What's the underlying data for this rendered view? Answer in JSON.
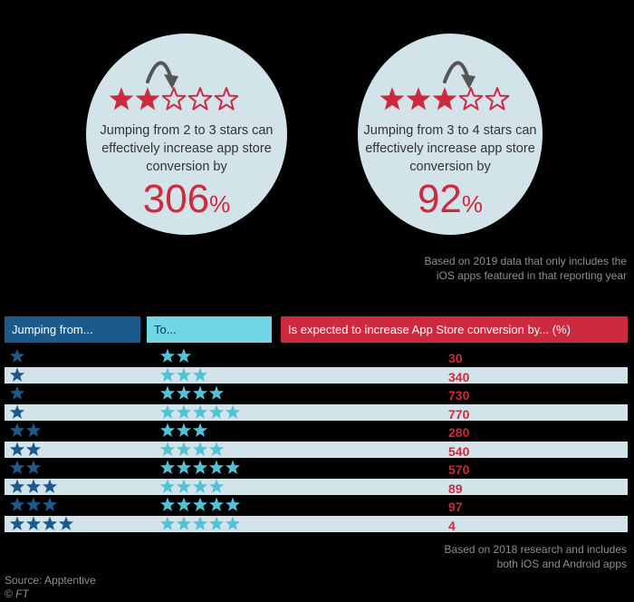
{
  "colors": {
    "background": "#000000",
    "circle": "#d2e4ea",
    "red": "#cc2a3e",
    "from_header": "#1c5a8c",
    "to_header": "#6fd6e6",
    "increase_header": "#cc2a3e",
    "from_star": "#1c5a8c",
    "to_star": "#52c2d8"
  },
  "icons": [
    "filled-star-icon",
    "outline-star-icon",
    "curved-arrow-icon"
  ],
  "callouts": [
    {
      "text_lines": [
        "Jumping from 2 to 3 stars can",
        "effectively increase app store",
        "conversion by"
      ],
      "value": "306",
      "unit": "%",
      "filled_stars": 2,
      "outline_stars": 3
    },
    {
      "text_lines": [
        "Jumping from 3 to 4 stars can",
        "effectively increase app store",
        "conversion by"
      ],
      "value": "92",
      "unit": "%",
      "filled_stars": 3,
      "outline_stars": 2
    }
  ],
  "note_top": [
    "Based on 2019 data that only includes the",
    "iOS apps featured in that reporting year"
  ],
  "note_bottom": [
    "Based on 2018 research and includes",
    "both iOS and Android apps"
  ],
  "source": "Source: Apptentive",
  "credit": "© FT",
  "chart_data": {
    "type": "table",
    "columns": [
      "Jumping from...",
      "To...",
      "Is expected to increase App Store conversion by... (%)"
    ],
    "rows": [
      {
        "from": 1,
        "to": 2,
        "value": 30
      },
      {
        "from": 1,
        "to": 3,
        "value": 340
      },
      {
        "from": 1,
        "to": 4,
        "value": 730
      },
      {
        "from": 1,
        "to": 5,
        "value": 770
      },
      {
        "from": 2,
        "to": 3,
        "value": 280
      },
      {
        "from": 2,
        "to": 4,
        "value": 540
      },
      {
        "from": 2,
        "to": 5,
        "value": 570
      },
      {
        "from": 3,
        "to": 4,
        "value": 89
      },
      {
        "from": 3,
        "to": 5,
        "value": 97
      },
      {
        "from": 4,
        "to": 5,
        "value": 4
      }
    ]
  }
}
